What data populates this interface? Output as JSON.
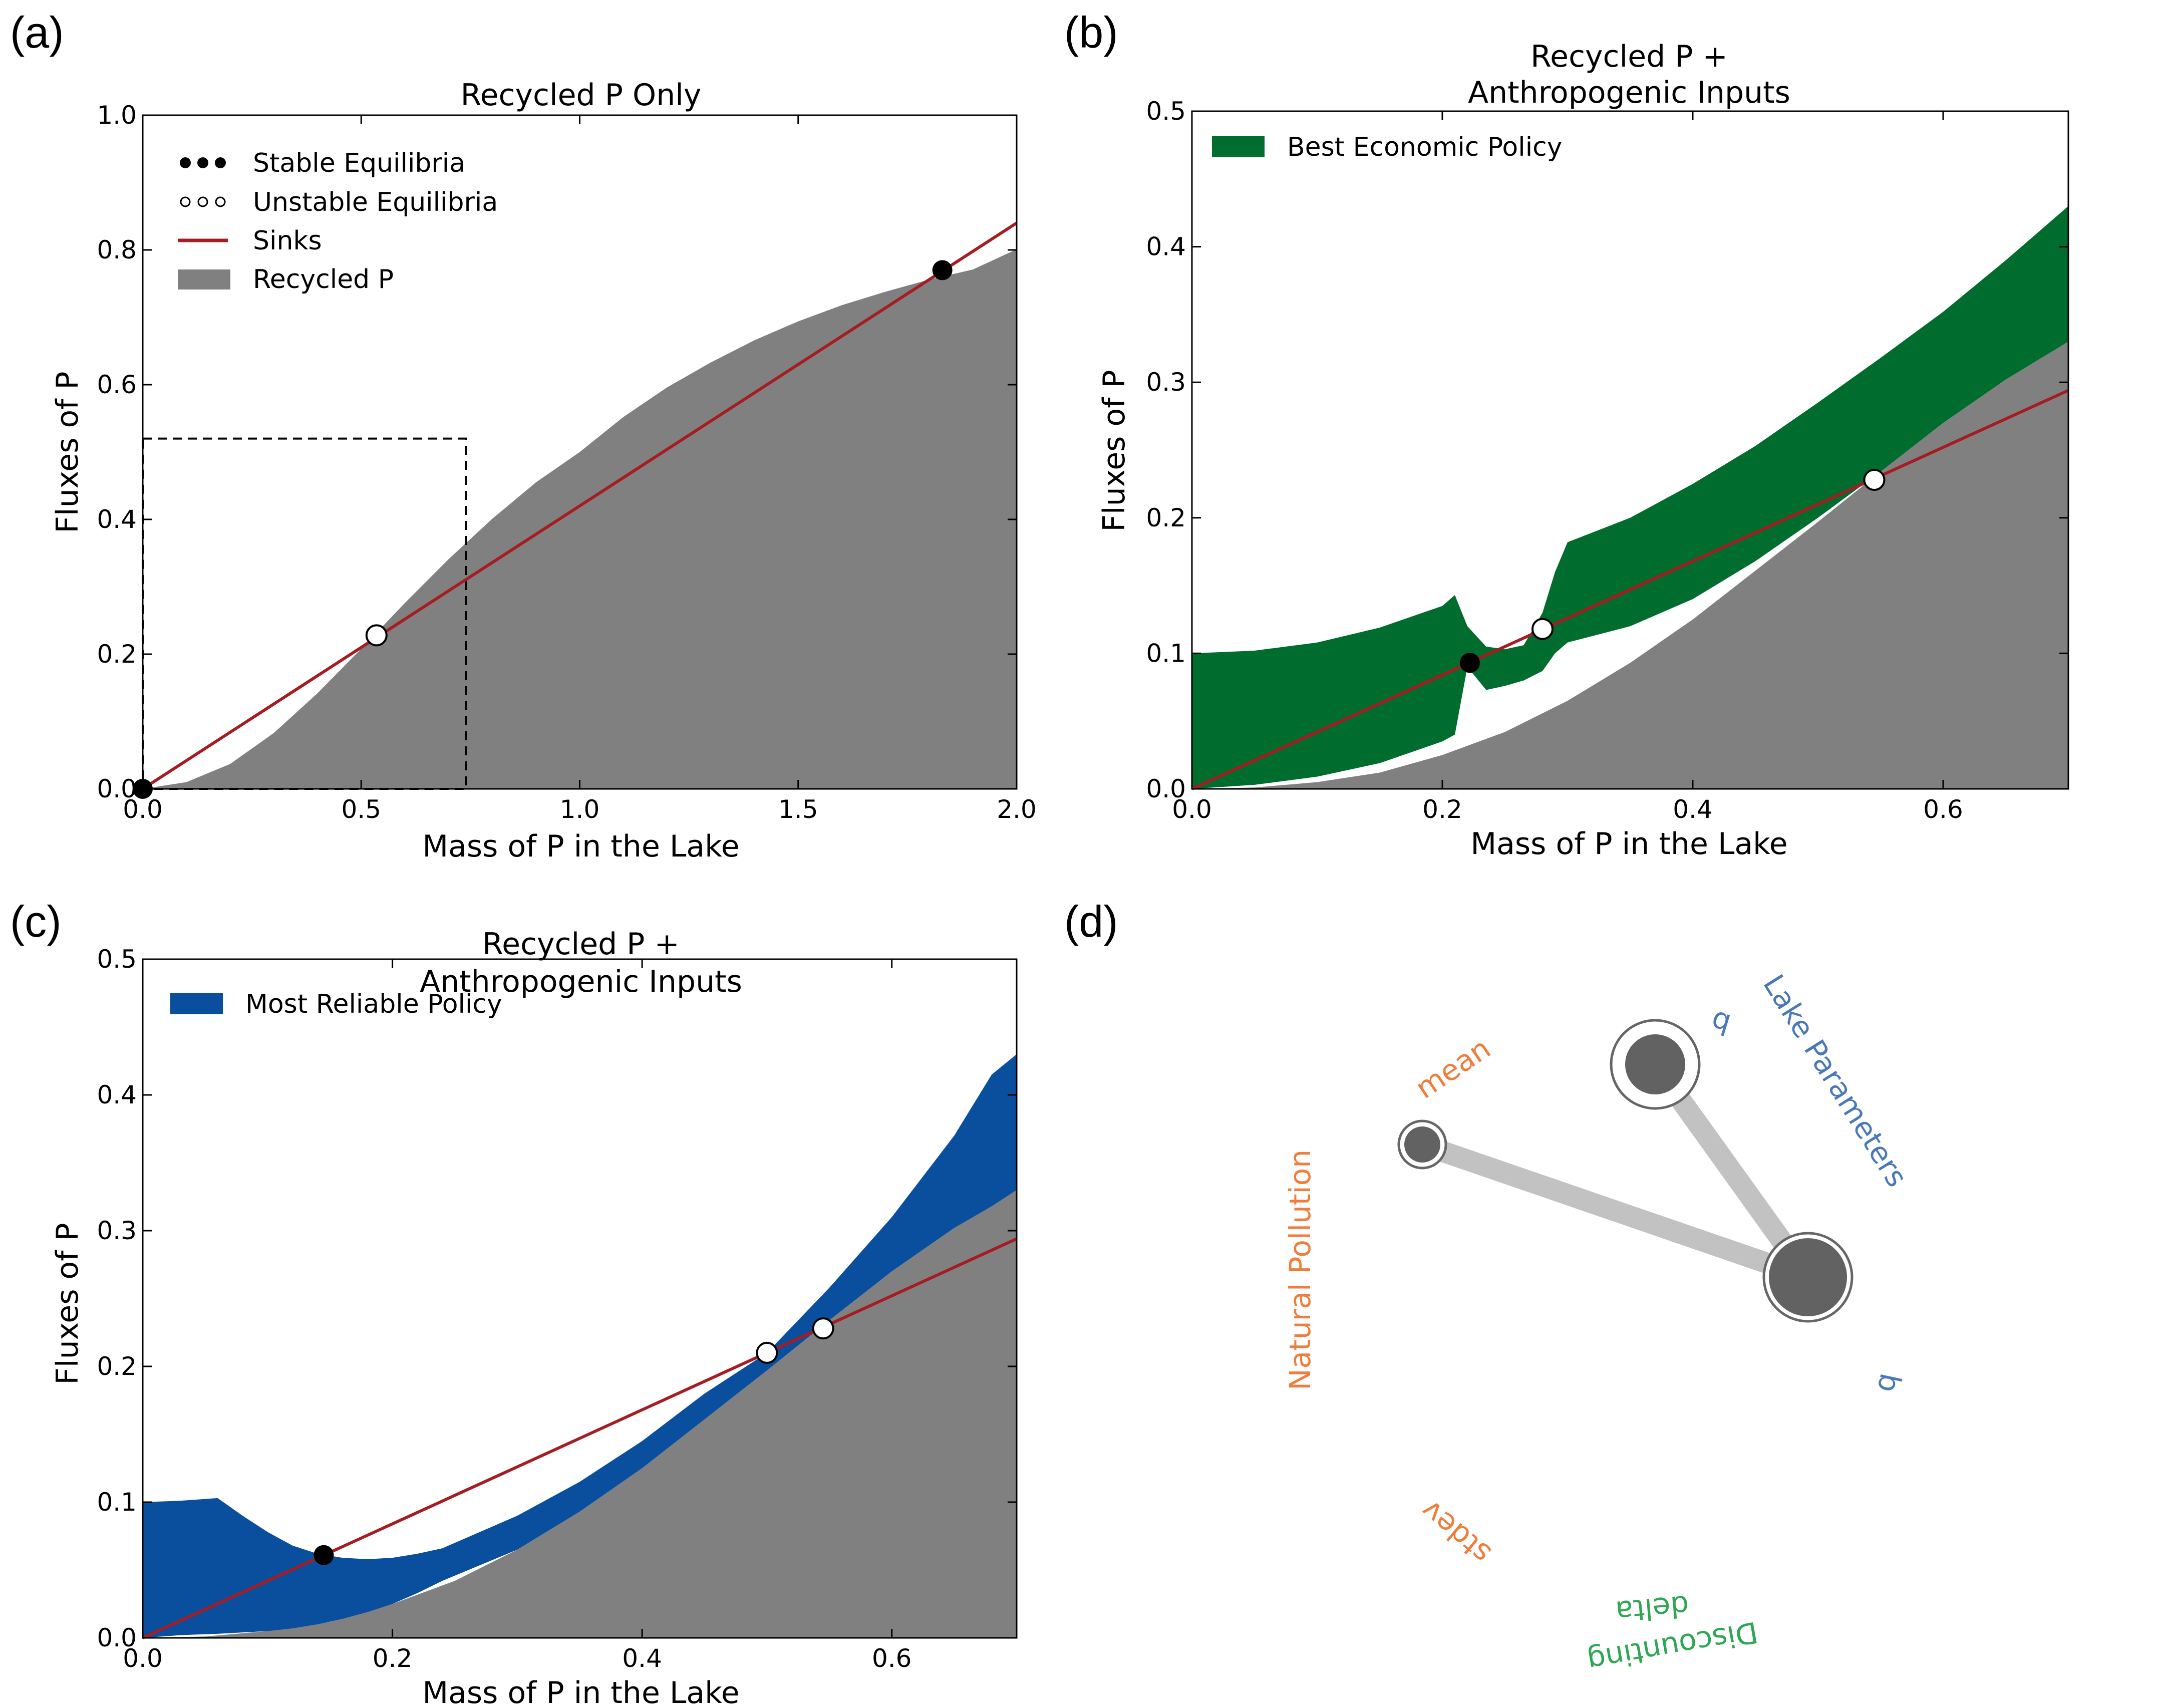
{
  "panels": [
    {
      "id": "a",
      "label": "(a)",
      "title": [
        "Recycled P Only"
      ],
      "xlabel": "Mass of P in the Lake",
      "ylabel": "Fluxes of P",
      "xlim": [
        0.0,
        2.0
      ],
      "ylim": [
        0.0,
        1.0
      ],
      "xticks": [
        "0.0",
        "0.5",
        "1.0",
        "1.5",
        "2.0"
      ],
      "yticks": [
        "0.0",
        "0.2",
        "0.4",
        "0.6",
        "0.8",
        "1.0"
      ],
      "legend": {
        "placement": "upper-left",
        "stable": "Stable Equilibria",
        "unstable": "Unstable Equilibria",
        "sinks": "Sinks",
        "recycled": "Recycled P"
      }
    },
    {
      "id": "b",
      "label": "(b)",
      "title": [
        "Recycled P +",
        "Anthropogenic Inputs"
      ],
      "xlabel": "Mass of P in the Lake",
      "ylabel": "Fluxes of P",
      "xlim": [
        0.0,
        0.7
      ],
      "ylim": [
        0.0,
        0.5
      ],
      "xticks": [
        "0.0",
        "0.2",
        "0.4",
        "0.6"
      ],
      "yticks": [
        "0.0",
        "0.1",
        "0.2",
        "0.3",
        "0.4",
        "0.5"
      ],
      "legend": {
        "placement": "upper-left",
        "policy": "Best Economic Policy"
      }
    },
    {
      "id": "c",
      "label": "(c)",
      "title": [
        "Recycled P +",
        "Anthropogenic Inputs"
      ],
      "xlabel": "Mass of P in the Lake",
      "ylabel": "Fluxes of P",
      "xlim": [
        0.0,
        0.7
      ],
      "ylim": [
        0.0,
        0.5
      ],
      "xticks": [
        "0.0",
        "0.2",
        "0.4",
        "0.6"
      ],
      "yticks": [
        "0.0",
        "0.1",
        "0.2",
        "0.3",
        "0.4",
        "0.5"
      ],
      "legend": {
        "placement": "upper-left",
        "policy": "Most Reliable Policy"
      }
    },
    {
      "id": "d",
      "label": "(d)"
    }
  ],
  "colors": {
    "sinks": "#a51c22",
    "recycled": "#808080",
    "best_economic": "#006c2d",
    "most_reliable": "#0a4f9e",
    "natural_pollution": "#ef7d3b",
    "lake_parameters": "#4a78b8",
    "discounting": "#2ea653",
    "edge": "#c2c2c2",
    "node": "#626262"
  },
  "chart_data": [
    {
      "panel": "a",
      "type": "area",
      "recycled_p": {
        "x": [
          0.0,
          0.1,
          0.2,
          0.3,
          0.4,
          0.5,
          0.6,
          0.7,
          0.8,
          0.9,
          1.0,
          1.1,
          1.2,
          1.3,
          1.4,
          1.5,
          1.6,
          1.7,
          1.8,
          1.9,
          2.0
        ],
        "y": [
          0.0,
          0.01,
          0.037,
          0.083,
          0.142,
          0.208,
          0.276,
          0.341,
          0.401,
          0.455,
          0.5,
          0.552,
          0.596,
          0.633,
          0.666,
          0.694,
          0.718,
          0.738,
          0.756,
          0.771,
          0.801
        ]
      },
      "sinks": {
        "x": [
          0.0,
          2.0
        ],
        "y": [
          0.0,
          0.84
        ]
      },
      "stable_equilibria": [
        [
          0.0,
          0.0
        ],
        [
          1.83,
          0.77
        ]
      ],
      "unstable_equilibria": [
        [
          0.535,
          0.228
        ]
      ],
      "inset_box": {
        "x": [
          0.0,
          0.74
        ],
        "y": [
          0.0,
          0.52
        ]
      }
    },
    {
      "panel": "b",
      "type": "area",
      "recycled_p": {
        "x": [
          0.0,
          0.05,
          0.1,
          0.15,
          0.2,
          0.25,
          0.3,
          0.35,
          0.4,
          0.45,
          0.5,
          0.55,
          0.6,
          0.65,
          0.7
        ],
        "y": [
          0.0,
          0.001,
          0.005,
          0.012,
          0.025,
          0.042,
          0.065,
          0.093,
          0.125,
          0.161,
          0.197,
          0.234,
          0.27,
          0.302,
          0.33
        ]
      },
      "best_economic_policy": {
        "x": [
          0.0,
          0.05,
          0.1,
          0.15,
          0.2,
          0.21,
          0.22,
          0.235,
          0.25,
          0.265,
          0.28,
          0.29,
          0.3,
          0.35,
          0.4,
          0.45,
          0.5,
          0.55,
          0.6,
          0.65,
          0.7
        ],
        "lower": [
          0.0,
          0.003,
          0.009,
          0.019,
          0.035,
          0.04,
          0.09,
          0.073,
          0.076,
          0.08,
          0.087,
          0.1,
          0.108,
          0.12,
          0.14,
          0.168,
          0.2,
          0.234,
          0.27,
          0.302,
          0.33
        ],
        "upper": [
          0.1,
          0.102,
          0.108,
          0.119,
          0.135,
          0.143,
          0.12,
          0.105,
          0.103,
          0.106,
          0.13,
          0.16,
          0.182,
          0.2,
          0.225,
          0.253,
          0.285,
          0.318,
          0.352,
          0.39,
          0.43
        ]
      },
      "sinks": {
        "x": [
          0.0,
          0.7
        ],
        "y": [
          0.0,
          0.294
        ]
      },
      "stable_equilibria": [
        [
          0.222,
          0.093
        ]
      ],
      "unstable_equilibria": [
        [
          0.28,
          0.118
        ],
        [
          0.545,
          0.228
        ]
      ]
    },
    {
      "panel": "c",
      "type": "area",
      "recycled_p": {
        "x": [
          0.0,
          0.05,
          0.1,
          0.15,
          0.2,
          0.25,
          0.3,
          0.35,
          0.4,
          0.45,
          0.5,
          0.55,
          0.6,
          0.65,
          0.7
        ],
        "y": [
          0.0,
          0.001,
          0.005,
          0.012,
          0.025,
          0.042,
          0.065,
          0.093,
          0.125,
          0.161,
          0.197,
          0.234,
          0.27,
          0.302,
          0.33
        ]
      },
      "most_reliable_policy": {
        "x": [
          0.0,
          0.03,
          0.06,
          0.08,
          0.1,
          0.12,
          0.14,
          0.16,
          0.18,
          0.2,
          0.22,
          0.24,
          0.3,
          0.35,
          0.4,
          0.45,
          0.5,
          0.55,
          0.6,
          0.65,
          0.68,
          0.7
        ],
        "lower": [
          0.0,
          0.002,
          0.003,
          0.004,
          0.005,
          0.007,
          0.01,
          0.014,
          0.019,
          0.025,
          0.033,
          0.042,
          0.065,
          0.093,
          0.125,
          0.161,
          0.197,
          0.234,
          0.27,
          0.302,
          0.318,
          0.33
        ],
        "upper": [
          0.1,
          0.101,
          0.103,
          0.09,
          0.078,
          0.068,
          0.062,
          0.059,
          0.058,
          0.059,
          0.062,
          0.066,
          0.09,
          0.115,
          0.145,
          0.18,
          0.21,
          0.258,
          0.31,
          0.37,
          0.415,
          0.43
        ]
      },
      "sinks": {
        "x": [
          0.0,
          0.7
        ],
        "y": [
          0.0,
          0.294
        ]
      },
      "stable_equilibria": [
        [
          0.145,
          0.061
        ]
      ],
      "unstable_equilibria": [
        [
          0.5,
          0.21
        ],
        [
          0.545,
          0.228
        ]
      ]
    },
    {
      "panel": "d",
      "type": "diagram",
      "groups": [
        {
          "name": "Natural Pollution",
          "color": "natural_pollution",
          "parameters": [
            "mean",
            "stdev"
          ]
        },
        {
          "name": "Lake Parameters",
          "color": "lake_parameters",
          "parameters": [
            "b",
            "q"
          ]
        },
        {
          "name": "Discounting",
          "color": "discounting",
          "parameters": [
            "delta"
          ]
        }
      ],
      "nodes": [
        {
          "parameter": "q",
          "size": "medium"
        },
        {
          "parameter": "b",
          "size": "large"
        },
        {
          "parameter": "mean",
          "size": "small"
        }
      ],
      "edges": [
        {
          "from": "mean",
          "to": "b"
        },
        {
          "from": "q",
          "to": "b"
        }
      ]
    }
  ]
}
